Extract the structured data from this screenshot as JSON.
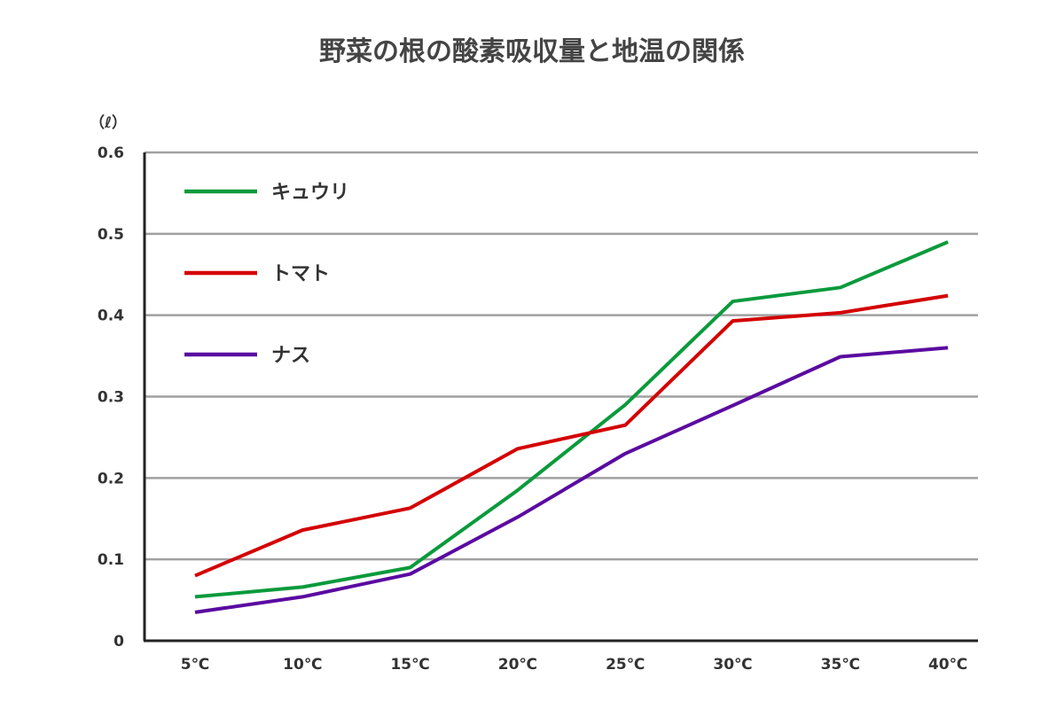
{
  "chart_data": {
    "type": "line",
    "title": "野菜の根の酸素吸収量と地温の関係",
    "ylabel": "（ℓ）",
    "xlabel": "",
    "categories": [
      "5℃",
      "10℃",
      "15℃",
      "20℃",
      "25℃",
      "30℃",
      "35℃",
      "40℃"
    ],
    "ylim": [
      0,
      0.6
    ],
    "yticks": [
      "0",
      "0.1",
      "0.2",
      "0.3",
      "0.4",
      "0.5",
      "0.6"
    ],
    "grid": "horizontal",
    "legend": "top-left",
    "series": [
      {
        "name": "キュウリ",
        "color": "#0a9a3c",
        "values": [
          0.054,
          0.066,
          0.09,
          0.185,
          0.29,
          0.417,
          0.434,
          0.49
        ]
      },
      {
        "name": "トマト",
        "color": "#d40000",
        "values": [
          0.08,
          0.136,
          0.163,
          0.236,
          0.265,
          0.393,
          0.403,
          0.424
        ]
      },
      {
        "name": "ナス",
        "color": "#5a0aa0",
        "values": [
          0.035,
          0.054,
          0.082,
          0.152,
          0.23,
          0.289,
          0.349,
          0.36
        ]
      }
    ]
  }
}
